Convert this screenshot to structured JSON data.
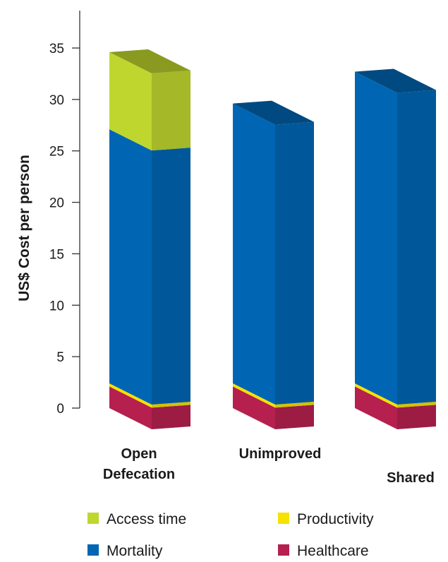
{
  "chart_data": {
    "type": "bar",
    "stacked": true,
    "three_d": true,
    "ylabel": "US$ Cost per person",
    "ylim": [
      0,
      35
    ],
    "yticks": [
      0,
      5,
      10,
      15,
      20,
      25,
      30,
      35
    ],
    "categories": [
      [
        "Open",
        "Defecation"
      ],
      [
        "Unimproved"
      ],
      [
        "Shared"
      ]
    ],
    "series": [
      {
        "name": "Healthcare",
        "color": "#b5204f",
        "values": [
          2.1,
          2.1,
          2.1
        ]
      },
      {
        "name": "Productivity",
        "color": "#f5e200",
        "values": [
          0.3,
          0.3,
          0.3
        ]
      },
      {
        "name": "Mortality",
        "color": "#0066b3",
        "values": [
          24.7,
          27.2,
          30.3
        ]
      },
      {
        "name": "Access time",
        "color": "#bfd62e",
        "values": [
          7.5,
          0,
          0
        ]
      }
    ],
    "legend": {
      "position": "bottom",
      "order": [
        "Access time",
        "Productivity",
        "Mortality",
        "Healthcare"
      ]
    }
  }
}
